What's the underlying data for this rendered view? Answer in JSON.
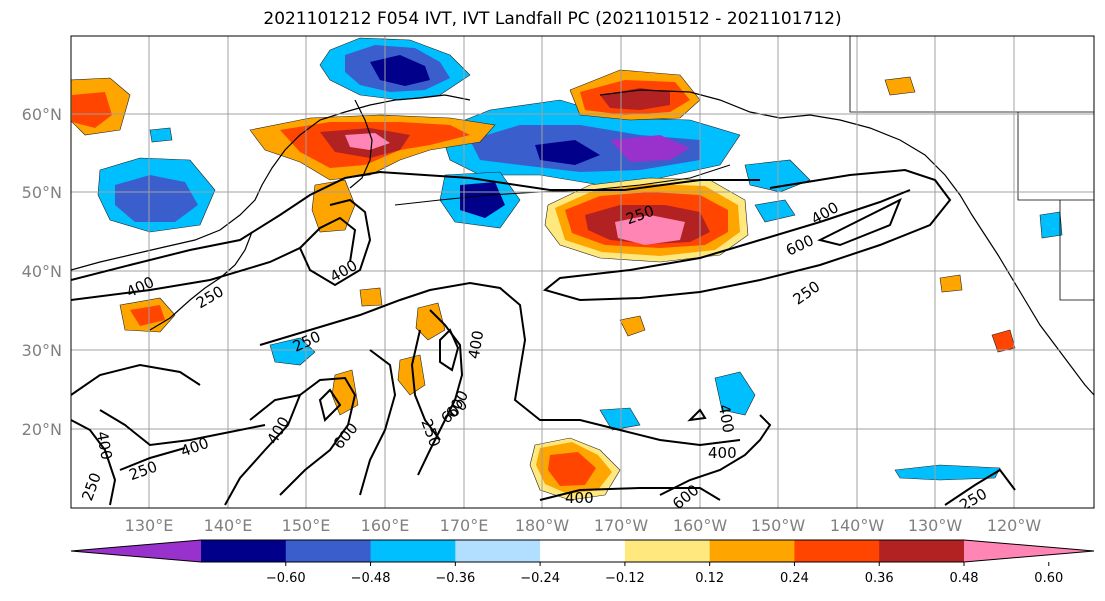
{
  "title": "2021101212 F054 IVT, IVT Landfall PC (2021101512 - 2021101712)",
  "map": {
    "lat_labels": [
      "60°N",
      "50°N",
      "40°N",
      "30°N",
      "20°N"
    ],
    "lon_labels": [
      "130°E",
      "140°E",
      "150°E",
      "160°E",
      "170°E",
      "180°W",
      "170°W",
      "160°W",
      "150°W",
      "140°W",
      "130°W",
      "120°W"
    ],
    "contour_labels": [
      "250",
      "400",
      "600",
      "250",
      "400",
      "400",
      "250",
      "400",
      "600",
      "250",
      "400",
      "250",
      "400",
      "600",
      "600",
      "400",
      "250",
      "400",
      "400",
      "600",
      "250",
      "400",
      "250"
    ],
    "grid_color": "#a0a0a0",
    "ocean_color": "#ffffff"
  },
  "colorbar": {
    "colors": [
      "#9932cc",
      "#00008b",
      "#3a5fcd",
      "#00bfff",
      "#b2dfff",
      "#ffffff",
      "#ffe97f",
      "#ffa500",
      "#ff4500",
      "#b22222",
      "#ff85b4"
    ],
    "tick_labels": [
      "−0.60",
      "−0.48",
      "−0.36",
      "−0.24",
      "−0.12",
      "0.12",
      "0.24",
      "0.36",
      "0.48",
      "0.60"
    ]
  }
}
